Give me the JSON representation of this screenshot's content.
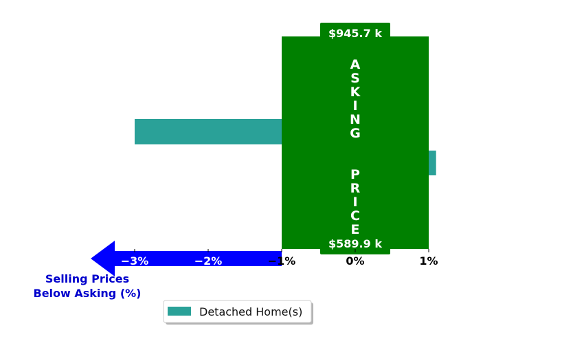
{
  "colors": {
    "bar": "#2aa198",
    "asking_band": "#008000",
    "arrow": "#0000ff",
    "axis_title": "#0000cc",
    "tick_on_arrow": "#ffffff",
    "tick_default": "#000000"
  },
  "chart_data": {
    "type": "bar",
    "orientation": "horizontal",
    "xlim": [
      -3.5,
      1.5
    ],
    "x_ticks": [
      -3,
      -2,
      -1,
      0,
      1
    ],
    "x_tick_labels": [
      "−3%",
      "−2%",
      "−1%",
      "0%",
      "1%"
    ],
    "series": [
      {
        "name": "Detached Home(s)",
        "values": [
          -3.0,
          1.1
        ]
      }
    ],
    "asking_band": {
      "x_range": [
        -1,
        1
      ],
      "label": "ASKING  PRICE",
      "top_price": "$945.7 k",
      "bottom_price": "$589.9 k"
    },
    "axis_title_lines": [
      "Selling Prices",
      "Below Asking (%)"
    ],
    "legend": {
      "placement": "bottom-center",
      "entries": [
        "Detached Home(s)"
      ]
    },
    "grid": false
  }
}
